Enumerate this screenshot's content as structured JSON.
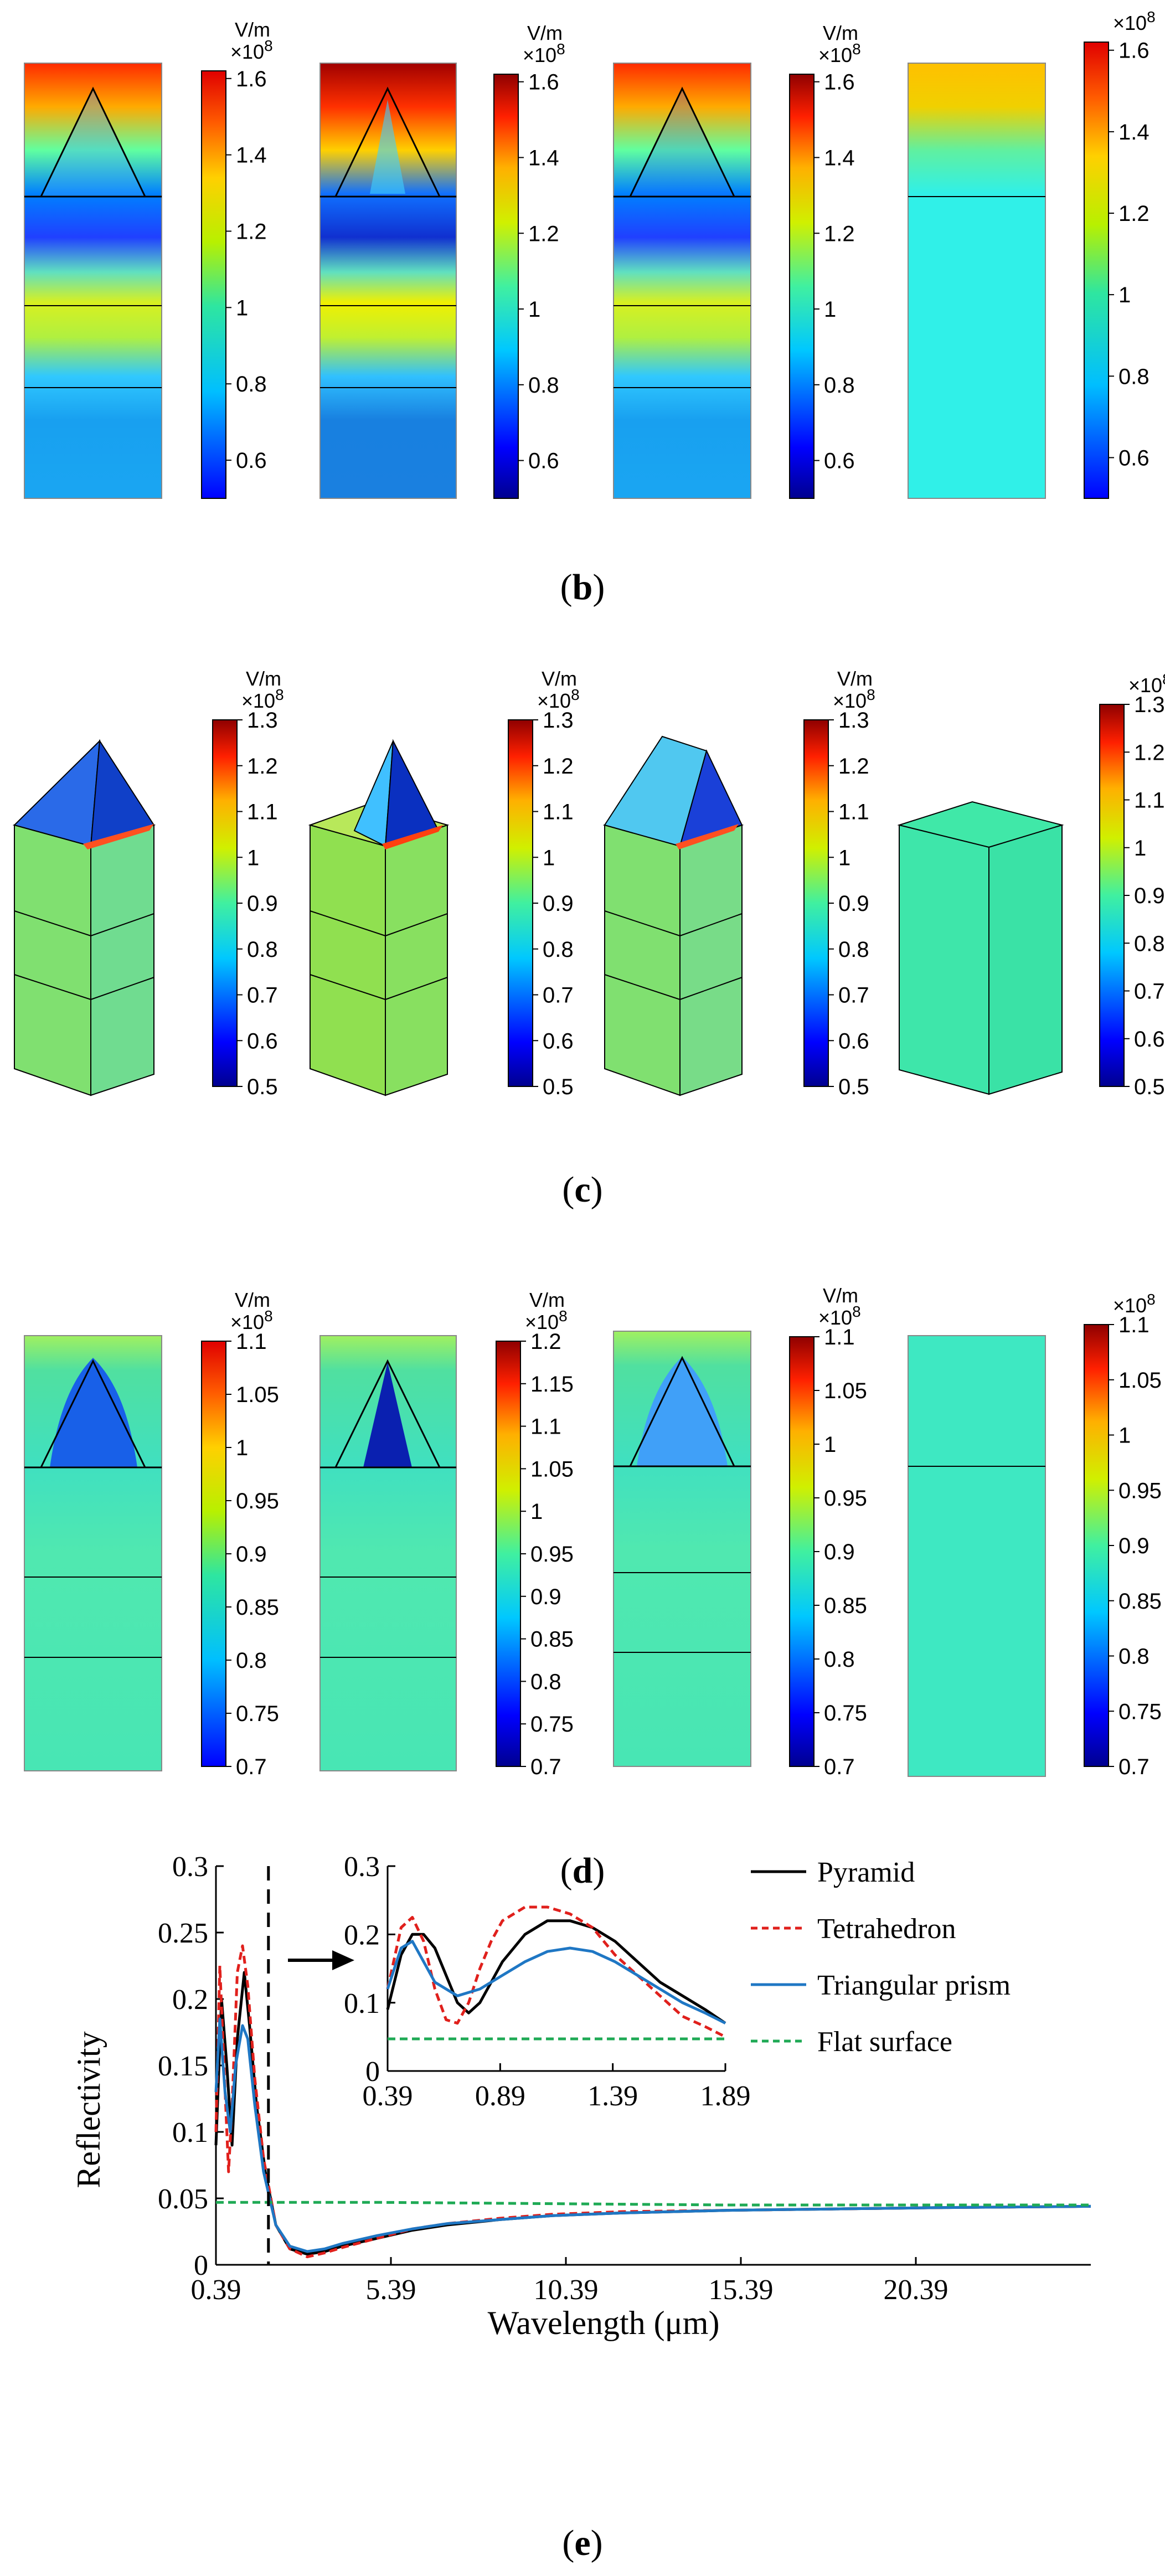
{
  "panels": {
    "b": {
      "label": "b",
      "colorbars": [
        {
          "unit": "V/m",
          "exp": "×10",
          "sup": "8",
          "ticks": [
            "1.6",
            "1.4",
            "1.2",
            "1",
            "0.8",
            "0.6"
          ]
        },
        {
          "unit": "V/m",
          "exp": "×10",
          "sup": "8",
          "ticks": [
            "1.6",
            "1.4",
            "1.2",
            "1",
            "0.8",
            "0.6"
          ]
        },
        {
          "unit": "V/m",
          "exp": "×10",
          "sup": "8",
          "ticks": [
            "1.6",
            "1.4",
            "1.2",
            "1",
            "0.8",
            "0.6"
          ]
        },
        {
          "unit": "",
          "exp": "×10",
          "sup": "8",
          "ticks": [
            "1.6",
            "1.4",
            "1.2",
            "1",
            "0.8",
            "0.6"
          ]
        }
      ]
    },
    "c": {
      "label": "c",
      "colorbars": [
        {
          "unit": "V/m",
          "exp": "×10",
          "sup": "8",
          "ticks": [
            "1.3",
            "1.2",
            "1.1",
            "1",
            "0.9",
            "0.8",
            "0.7",
            "0.6",
            "0.5"
          ]
        },
        {
          "unit": "V/m",
          "exp": "×10",
          "sup": "8",
          "ticks": [
            "1.3",
            "1.2",
            "1.1",
            "1",
            "0.9",
            "0.8",
            "0.7",
            "0.6",
            "0.5"
          ]
        },
        {
          "unit": "V/m",
          "exp": "×10",
          "sup": "8",
          "ticks": [
            "1.3",
            "1.2",
            "1.1",
            "1",
            "0.9",
            "0.8",
            "0.7",
            "0.6",
            "0.5"
          ]
        },
        {
          "unit": "",
          "exp": "×10",
          "sup": "8",
          "ticks": [
            "1.3",
            "1.2",
            "1.1",
            "1",
            "0.9",
            "0.8",
            "0.7",
            "0.6",
            "0.5"
          ]
        }
      ]
    },
    "d": {
      "label": "d",
      "colorbars": [
        {
          "unit": "V/m",
          "exp": "×10",
          "sup": "8",
          "ticks": [
            "1.1",
            "1.05",
            "1",
            "0.95",
            "0.9",
            "0.85",
            "0.8",
            "0.75",
            "0.7"
          ]
        },
        {
          "unit": "V/m",
          "exp": "×10",
          "sup": "8",
          "ticks": [
            "1.2",
            "1.15",
            "1.1",
            "1.05",
            "1",
            "0.95",
            "0.9",
            "0.85",
            "0.8",
            "0.75",
            "0.7"
          ]
        },
        {
          "unit": "V/m",
          "exp": "×10",
          "sup": "8",
          "ticks": [
            "1.1",
            "1.05",
            "1",
            "0.95",
            "0.9",
            "0.85",
            "0.8",
            "0.75",
            "0.7"
          ]
        },
        {
          "unit": "",
          "exp": "×10",
          "sup": "8",
          "ticks": [
            "1.1",
            "1.05",
            "1",
            "0.95",
            "0.9",
            "0.85",
            "0.8",
            "0.75",
            "0.7"
          ]
        }
      ]
    },
    "e": {
      "label": "e"
    }
  },
  "chart_data": {
    "type": "line",
    "xlabel": "Wavelength (μm)",
    "ylabel": "Reflectivity",
    "xlim": [
      0.39,
      25.39
    ],
    "ylim": [
      0,
      0.3
    ],
    "xticks": [
      "0.39",
      "5.39",
      "10.39",
      "15.39",
      "20.39"
    ],
    "yticks": [
      "0",
      "0.05",
      "0.1",
      "0.15",
      "0.2",
      "0.25",
      "0.3"
    ],
    "grid": false,
    "legend": "top-right",
    "series": [
      {
        "name": "Pyramid",
        "color": "#000000",
        "dash": "solid",
        "x": [
          0.39,
          0.55,
          0.7,
          0.85,
          1.0,
          1.2,
          1.35,
          1.55,
          1.8,
          2.1,
          2.5,
          3.0,
          3.5,
          4.0,
          5.0,
          6.0,
          7.0,
          8.5,
          10.0,
          12.0,
          15.0,
          18.0,
          21.0,
          25.39
        ],
        "y": [
          0.09,
          0.2,
          0.15,
          0.09,
          0.17,
          0.22,
          0.18,
          0.12,
          0.07,
          0.03,
          0.012,
          0.008,
          0.01,
          0.014,
          0.02,
          0.026,
          0.03,
          0.034,
          0.037,
          0.039,
          0.041,
          0.042,
          0.043,
          0.044
        ]
      },
      {
        "name": "Tetrahedron",
        "color": "#e0201c",
        "dash": "dashed",
        "x": [
          0.39,
          0.5,
          0.62,
          0.75,
          0.85,
          1.0,
          1.15,
          1.3,
          1.5,
          1.75,
          2.1,
          2.5,
          3.0,
          3.5,
          4.0,
          5.0,
          6.0,
          7.0,
          8.5,
          10.0,
          12.0,
          15.0,
          18.0,
          21.0,
          25.39
        ],
        "y": [
          0.1,
          0.225,
          0.15,
          0.07,
          0.12,
          0.22,
          0.24,
          0.21,
          0.14,
          0.08,
          0.03,
          0.012,
          0.006,
          0.009,
          0.013,
          0.02,
          0.027,
          0.031,
          0.035,
          0.038,
          0.04,
          0.041,
          0.042,
          0.043,
          0.044
        ]
      },
      {
        "name": "Triangular prism",
        "color": "#1f77c4",
        "dash": "solid",
        "x": [
          0.39,
          0.5,
          0.65,
          0.8,
          0.95,
          1.15,
          1.3,
          1.5,
          1.75,
          2.1,
          2.5,
          3.0,
          3.5,
          4.0,
          5.0,
          6.0,
          7.0,
          8.5,
          10.0,
          12.0,
          15.0,
          18.0,
          21.0,
          25.39
        ],
        "y": [
          0.13,
          0.185,
          0.13,
          0.1,
          0.15,
          0.18,
          0.17,
          0.12,
          0.07,
          0.03,
          0.014,
          0.01,
          0.012,
          0.016,
          0.022,
          0.027,
          0.031,
          0.034,
          0.037,
          0.039,
          0.041,
          0.042,
          0.043,
          0.044
        ]
      },
      {
        "name": "Flat surface",
        "color": "#1faa55",
        "dash": "dashed",
        "x": [
          0.39,
          5.0,
          10.0,
          15.0,
          20.0,
          25.39
        ],
        "y": [
          0.047,
          0.047,
          0.046,
          0.045,
          0.045,
          0.045
        ]
      }
    ],
    "inset": {
      "xlim": [
        0.39,
        1.89
      ],
      "ylim": [
        0,
        0.3
      ],
      "xticks": [
        "0.39",
        "0.89",
        "1.39",
        "1.89"
      ],
      "yticks": [
        "0",
        "0.1",
        "0.2",
        "0.3"
      ],
      "series": [
        {
          "name": "Pyramid",
          "color": "#000000",
          "dash": "solid",
          "x": [
            0.39,
            0.45,
            0.5,
            0.55,
            0.6,
            0.65,
            0.7,
            0.75,
            0.8,
            0.85,
            0.9,
            1.0,
            1.1,
            1.2,
            1.3,
            1.4,
            1.5,
            1.6,
            1.7,
            1.8,
            1.89
          ],
          "y": [
            0.09,
            0.17,
            0.2,
            0.2,
            0.18,
            0.14,
            0.1,
            0.085,
            0.1,
            0.13,
            0.16,
            0.2,
            0.22,
            0.22,
            0.21,
            0.19,
            0.16,
            0.13,
            0.11,
            0.09,
            0.07
          ]
        },
        {
          "name": "Tetrahedron",
          "color": "#e0201c",
          "dash": "dashed",
          "x": [
            0.39,
            0.45,
            0.5,
            0.55,
            0.6,
            0.65,
            0.7,
            0.75,
            0.8,
            0.85,
            0.9,
            1.0,
            1.1,
            1.2,
            1.3,
            1.4,
            1.5,
            1.6,
            1.7,
            1.8,
            1.89
          ],
          "y": [
            0.12,
            0.21,
            0.225,
            0.19,
            0.12,
            0.075,
            0.07,
            0.1,
            0.15,
            0.19,
            0.22,
            0.24,
            0.24,
            0.23,
            0.21,
            0.17,
            0.14,
            0.11,
            0.08,
            0.065,
            0.05
          ]
        },
        {
          "name": "Triangular prism",
          "color": "#1f77c4",
          "dash": "solid",
          "x": [
            0.39,
            0.45,
            0.5,
            0.55,
            0.6,
            0.7,
            0.8,
            0.9,
            1.0,
            1.1,
            1.2,
            1.3,
            1.4,
            1.5,
            1.6,
            1.7,
            1.8,
            1.89
          ],
          "y": [
            0.12,
            0.18,
            0.19,
            0.16,
            0.13,
            0.11,
            0.12,
            0.14,
            0.16,
            0.175,
            0.18,
            0.175,
            0.16,
            0.14,
            0.12,
            0.1,
            0.085,
            0.07
          ]
        },
        {
          "name": "Flat surface",
          "color": "#1faa55",
          "dash": "dashed",
          "x": [
            0.39,
            0.89,
            1.39,
            1.89
          ],
          "y": [
            0.047,
            0.047,
            0.047,
            0.047
          ]
        }
      ]
    }
  }
}
